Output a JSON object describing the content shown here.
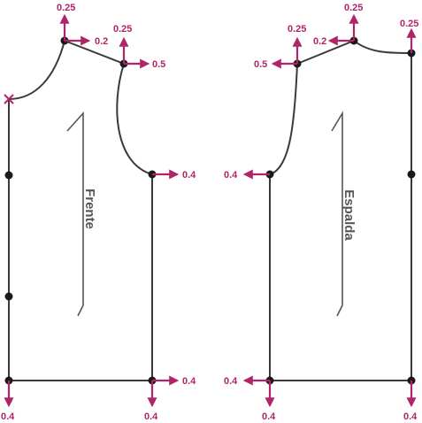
{
  "pieces": {
    "front": {
      "label": "Frente"
    },
    "back": {
      "label": "Espalda"
    }
  },
  "grading": {
    "front_neck_top": "0.25",
    "front_neck_side": "0.2",
    "front_shoulder": "0.25",
    "front_shoulder_side": "0.5",
    "front_armhole": "0.4",
    "front_hem_side": "0.4",
    "front_hem_left_down": "0.4",
    "front_hem_right_down": "0.4",
    "back_neck_top": "0.25",
    "back_neck_side": "0.2",
    "back_shoulder": "0.25",
    "back_shoulder_side": "0.5",
    "back_center_top": "0.25",
    "back_armhole": "0.4",
    "back_hem_side": "0.4",
    "back_hem_left_down": "0.4",
    "back_hem_right_down": "0.4"
  },
  "colors": {
    "grading_arrow": "#b0246a",
    "outline": "#3a3a3a"
  }
}
